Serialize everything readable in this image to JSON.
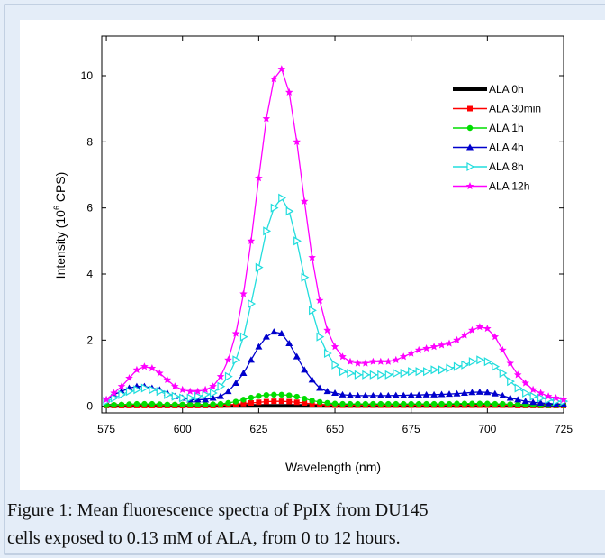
{
  "chart_data": {
    "type": "line",
    "x_label": "Wavelength (nm)",
    "y_label": [
      "Intensity (10",
      "6",
      " CPS)"
    ],
    "xlim": [
      573.5,
      725
    ],
    "ylim": [
      -0.2,
      11.2
    ],
    "xticks": [
      575,
      600,
      625,
      650,
      675,
      700,
      725
    ],
    "yticks": [
      0,
      2,
      4,
      6,
      8,
      10
    ],
    "legend": "upper right",
    "x": [
      575,
      577.5,
      580,
      582.5,
      585,
      587.5,
      590,
      592.5,
      595,
      597.5,
      600,
      602.5,
      605,
      607.5,
      610,
      612.5,
      615,
      617.5,
      620,
      622.5,
      625,
      627.5,
      630,
      632.5,
      635,
      637.5,
      640,
      642.5,
      645,
      647.5,
      650,
      652.5,
      655,
      657.5,
      660,
      662.5,
      665,
      667.5,
      670,
      672.5,
      675,
      677.5,
      680,
      682.5,
      685,
      687.5,
      690,
      692.5,
      695,
      697.5,
      700,
      702.5,
      705,
      707.5,
      710,
      712.5,
      715,
      717.5,
      720,
      722.5,
      725
    ],
    "series": [
      {
        "name": "ALA 0h",
        "color": "#000000",
        "marker": "none",
        "values": [
          0.01,
          0.01,
          0.01,
          0.01,
          0.01,
          0.01,
          0.01,
          0.01,
          0.01,
          0.01,
          0.01,
          0.01,
          0.01,
          0.01,
          0.01,
          0.01,
          0.01,
          0.01,
          0.01,
          0.01,
          0.01,
          0.01,
          0.01,
          0.01,
          0.01,
          0.01,
          0.01,
          0.01,
          0.01,
          0.01,
          0.01,
          0.01,
          0.01,
          0.01,
          0.01,
          0.01,
          0.01,
          0.01,
          0.01,
          0.01,
          0.01,
          0.01,
          0.01,
          0.01,
          0.01,
          0.01,
          0.01,
          0.01,
          0.01,
          0.01,
          0.01,
          0.01,
          0.01,
          0.01,
          0.01,
          0.01,
          0.01,
          0.01,
          0.01,
          0.01,
          0.01
        ]
      },
      {
        "name": "ALA 30min",
        "color": "#ff0000",
        "marker": "square",
        "values": [
          0.02,
          0.02,
          0.02,
          0.02,
          0.02,
          0.02,
          0.02,
          0.02,
          0.02,
          0.02,
          0.02,
          0.02,
          0.02,
          0.02,
          0.02,
          0.03,
          0.04,
          0.06,
          0.08,
          0.1,
          0.12,
          0.14,
          0.15,
          0.15,
          0.14,
          0.12,
          0.1,
          0.07,
          0.05,
          0.04,
          0.03,
          0.03,
          0.03,
          0.03,
          0.03,
          0.03,
          0.03,
          0.03,
          0.03,
          0.03,
          0.03,
          0.03,
          0.03,
          0.03,
          0.03,
          0.03,
          0.03,
          0.03,
          0.03,
          0.03,
          0.03,
          0.03,
          0.03,
          0.03,
          0.02,
          0.02,
          0.02,
          0.02,
          0.02,
          0.02,
          0.02
        ]
      },
      {
        "name": "ALA 1h",
        "color": "#00dd00",
        "marker": "circle",
        "values": [
          0.03,
          0.04,
          0.05,
          0.06,
          0.07,
          0.07,
          0.07,
          0.06,
          0.05,
          0.05,
          0.05,
          0.05,
          0.05,
          0.05,
          0.06,
          0.07,
          0.1,
          0.14,
          0.2,
          0.26,
          0.31,
          0.34,
          0.35,
          0.35,
          0.33,
          0.29,
          0.23,
          0.17,
          0.13,
          0.1,
          0.08,
          0.07,
          0.07,
          0.07,
          0.07,
          0.07,
          0.07,
          0.07,
          0.07,
          0.07,
          0.07,
          0.07,
          0.07,
          0.07,
          0.07,
          0.07,
          0.08,
          0.08,
          0.08,
          0.08,
          0.08,
          0.07,
          0.07,
          0.06,
          0.05,
          0.04,
          0.04,
          0.03,
          0.03,
          0.03,
          0.03
        ]
      },
      {
        "name": "ALA 4h",
        "color": "#0000cc",
        "marker": "triangle",
        "values": [
          0.2,
          0.35,
          0.45,
          0.55,
          0.6,
          0.6,
          0.55,
          0.5,
          0.4,
          0.3,
          0.25,
          0.2,
          0.2,
          0.2,
          0.25,
          0.3,
          0.45,
          0.7,
          1.0,
          1.4,
          1.8,
          2.1,
          2.25,
          2.2,
          1.9,
          1.5,
          1.1,
          0.8,
          0.55,
          0.45,
          0.4,
          0.35,
          0.33,
          0.32,
          0.32,
          0.32,
          0.32,
          0.32,
          0.33,
          0.33,
          0.34,
          0.34,
          0.35,
          0.35,
          0.36,
          0.37,
          0.38,
          0.4,
          0.42,
          0.43,
          0.42,
          0.38,
          0.32,
          0.25,
          0.2,
          0.15,
          0.12,
          0.1,
          0.08,
          0.07,
          0.06
        ]
      },
      {
        "name": "ALA 8h",
        "color": "#22dddd",
        "marker": "triangle-right",
        "values": [
          0.15,
          0.25,
          0.35,
          0.45,
          0.5,
          0.55,
          0.5,
          0.45,
          0.35,
          0.3,
          0.25,
          0.25,
          0.3,
          0.35,
          0.4,
          0.6,
          0.9,
          1.4,
          2.1,
          3.1,
          4.2,
          5.3,
          6.0,
          6.3,
          5.9,
          5.0,
          3.9,
          2.9,
          2.1,
          1.6,
          1.25,
          1.05,
          1.0,
          0.95,
          0.95,
          0.95,
          0.95,
          0.95,
          1.0,
          1.0,
          1.05,
          1.05,
          1.05,
          1.1,
          1.1,
          1.15,
          1.2,
          1.25,
          1.35,
          1.4,
          1.35,
          1.2,
          1.0,
          0.75,
          0.55,
          0.4,
          0.3,
          0.25,
          0.2,
          0.15,
          0.15
        ]
      },
      {
        "name": "ALA 12h",
        "color": "#ff00ff",
        "marker": "star",
        "values": [
          0.2,
          0.4,
          0.6,
          0.85,
          1.1,
          1.2,
          1.15,
          1.0,
          0.8,
          0.6,
          0.5,
          0.45,
          0.45,
          0.5,
          0.6,
          0.9,
          1.4,
          2.2,
          3.4,
          5.0,
          6.9,
          8.7,
          9.9,
          10.2,
          9.5,
          8.0,
          6.2,
          4.5,
          3.2,
          2.3,
          1.8,
          1.5,
          1.35,
          1.3,
          1.3,
          1.35,
          1.35,
          1.35,
          1.4,
          1.5,
          1.6,
          1.7,
          1.75,
          1.8,
          1.85,
          1.9,
          2.0,
          2.15,
          2.3,
          2.4,
          2.35,
          2.1,
          1.7,
          1.3,
          0.95,
          0.7,
          0.5,
          0.4,
          0.3,
          0.25,
          0.2
        ]
      }
    ],
    "caption": [
      "Figure 1: Mean fluorescence spectra of PpIX from DU145",
      "cells exposed to 0.13 mM of ALA, from 0 to 12 hours."
    ]
  }
}
